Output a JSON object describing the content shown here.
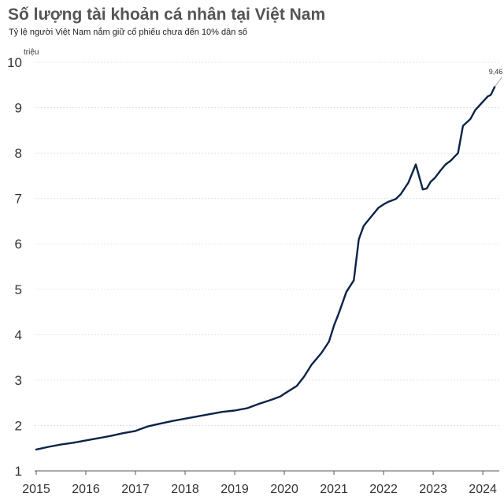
{
  "title": "Số lượng tài khoản cá nhân tại Việt Nam",
  "subtitle": "Tỷ lệ người Việt Nam nắm giữ cổ phiếu chưa đến 10% dân số",
  "chart_data": {
    "type": "line",
    "title": "Số lượng tài khoản cá nhân tại Việt Nam",
    "subtitle": "Tỷ lệ người Việt Nam nắm giữ cổ phiếu chưa đến 10% dân số",
    "y_unit": "triệu",
    "xlabel": "",
    "ylabel": "",
    "xlim": [
      2015,
      2024.3
    ],
    "ylim": [
      1,
      10
    ],
    "x_ticks": [
      2015,
      2016,
      2017,
      2018,
      2019,
      2020,
      2021,
      2022,
      2023,
      2024
    ],
    "y_ticks": [
      1,
      2,
      3,
      4,
      5,
      6,
      7,
      8,
      9,
      10
    ],
    "grid": true,
    "line_color": "#0b2347",
    "series": [
      {
        "x": [
          2015.0,
          2015.25,
          2015.5,
          2015.75,
          2016.0,
          2016.25,
          2016.5,
          2016.75,
          2017.0,
          2017.1,
          2017.25,
          2017.5,
          2017.75,
          2018.0,
          2018.25,
          2018.5,
          2018.75,
          2019.0,
          2019.25,
          2019.5,
          2019.75,
          2019.92,
          2020.0,
          2020.25,
          2020.4,
          2020.55,
          2020.75,
          2020.9,
          2021.0,
          2021.1,
          2021.25,
          2021.4,
          2021.5,
          2021.6,
          2021.75,
          2021.9,
          2022.0,
          2022.1,
          2022.25,
          2022.35,
          2022.5,
          2022.65,
          2022.79,
          2022.87,
          2022.95,
          2023.03,
          2023.15,
          2023.25,
          2023.35,
          2023.5,
          2023.6,
          2023.75,
          2023.85,
          2024.0,
          2024.1,
          2024.16,
          2024.24
        ],
        "values": [
          1.47,
          1.53,
          1.58,
          1.62,
          1.67,
          1.72,
          1.77,
          1.83,
          1.88,
          1.92,
          1.98,
          2.04,
          2.1,
          2.15,
          2.2,
          2.25,
          2.3,
          2.33,
          2.38,
          2.48,
          2.57,
          2.64,
          2.7,
          2.87,
          3.08,
          3.34,
          3.6,
          3.85,
          4.2,
          4.48,
          4.94,
          5.2,
          6.1,
          6.4,
          6.6,
          6.8,
          6.87,
          6.93,
          6.99,
          7.1,
          7.35,
          7.75,
          7.2,
          7.22,
          7.37,
          7.45,
          7.62,
          7.75,
          7.83,
          8.0,
          8.6,
          8.75,
          8.95,
          9.13,
          9.25,
          9.28,
          9.46
        ]
      }
    ],
    "annotations": [
      {
        "x": 2024.24,
        "y": 9.46,
        "text": "9,46"
      }
    ]
  }
}
